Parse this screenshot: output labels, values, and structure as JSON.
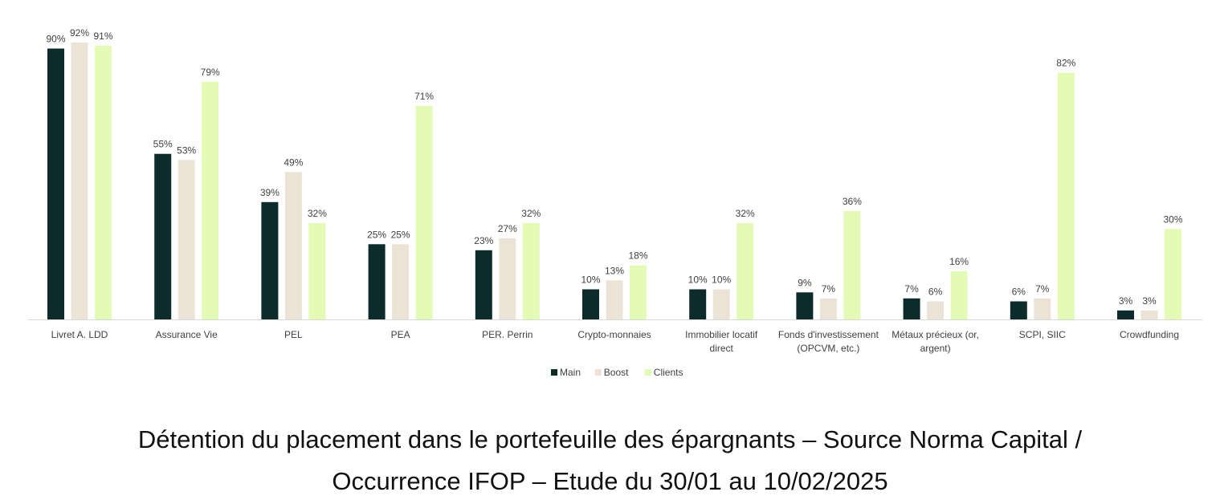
{
  "chart_data": {
    "type": "bar",
    "title": "",
    "xlabel": "",
    "ylabel": "",
    "ylim": [
      0,
      100
    ],
    "grid": false,
    "legend_position": "bottom-center",
    "value_suffix": "%",
    "categories": [
      [
        "Livret A. LDD"
      ],
      [
        "Assurance Vie"
      ],
      [
        "PEL"
      ],
      [
        "PEA"
      ],
      [
        "PER. Perrin"
      ],
      [
        "Crypto-monnaies"
      ],
      [
        "Immobilier locatif",
        "direct"
      ],
      [
        "Fonds d'investissement",
        "(OPCVM, etc.)"
      ],
      [
        "Métaux précieux (or,",
        "argent)"
      ],
      [
        "SCPI, SIIC"
      ],
      [
        "Crowdfunding"
      ]
    ],
    "series": [
      {
        "name": "Main",
        "color": "#0d2b2b",
        "values": [
          90,
          55,
          39,
          25,
          23,
          10,
          10,
          9,
          7,
          6,
          3
        ]
      },
      {
        "name": "Boost",
        "color": "#ebe3d6",
        "values": [
          92,
          53,
          49,
          25,
          27,
          13,
          10,
          7,
          6,
          7,
          3
        ]
      },
      {
        "name": "Clients",
        "color": "#e3fbb4",
        "values": [
          91,
          79,
          32,
          71,
          32,
          18,
          32,
          36,
          16,
          82,
          30
        ]
      }
    ],
    "axis_color": "#d9d9d9"
  },
  "caption": {
    "line1": "Détention du placement dans le portefeuille des épargnants – Source Norma Capital /",
    "line2": "Occurrence IFOP – Etude du 30/01 au 10/02/2025"
  }
}
